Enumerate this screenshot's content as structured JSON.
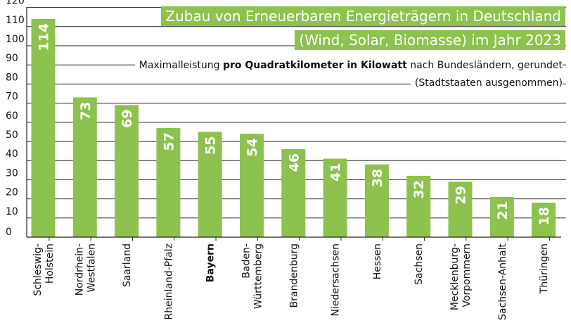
{
  "title_line1": "Zubau von Erneuerbaren Energieträgern in Deutschland",
  "title_line2": "(Wind, Solar, Biomasse) im Jahr 2023",
  "subtitle_pre": "Maximalleistung ",
  "subtitle_bold": "pro Quadratkilometer in Kilowatt",
  "subtitle_post": " nach Bundesländern, gerundet",
  "subtitle_line2": "(Stadtstaaten ausgenommen)",
  "colors": {
    "bar": "#8cc24d",
    "title_bg": "#8cc24d",
    "grid": "#222222",
    "text": "#111111"
  },
  "chart_data": {
    "type": "bar",
    "title": "Zubau von Erneuerbaren Energieträgern in Deutschland (Wind, Solar, Biomasse) im Jahr 2023",
    "ylabel": "Maximalleistung pro Quadratkilometer in Kilowatt",
    "xlabel": "",
    "ylim": [
      0,
      120
    ],
    "yticks": [
      "0",
      "10",
      "20",
      "30",
      "40",
      "50",
      "60",
      "70",
      "80",
      "90",
      "100",
      "110",
      "120"
    ],
    "categories": [
      {
        "lines": [
          "Schleswig-",
          "Holstein"
        ],
        "bold": false
      },
      {
        "lines": [
          "Nordrhein-",
          "Westfalen"
        ],
        "bold": false
      },
      {
        "lines": [
          "Saarland"
        ],
        "bold": false
      },
      {
        "lines": [
          "Rheinland-Pfalz"
        ],
        "bold": false
      },
      {
        "lines": [
          "Bayern"
        ],
        "bold": true
      },
      {
        "lines": [
          "Baden-",
          "Württemberg"
        ],
        "bold": false
      },
      {
        "lines": [
          "Brandenburg"
        ],
        "bold": false
      },
      {
        "lines": [
          "Niedersachsen"
        ],
        "bold": false
      },
      {
        "lines": [
          "Hessen"
        ],
        "bold": false
      },
      {
        "lines": [
          "Sachsen"
        ],
        "bold": false
      },
      {
        "lines": [
          "Mecklenburg-",
          "Vorpommern"
        ],
        "bold": false
      },
      {
        "lines": [
          "Sachsen-Anhalt"
        ],
        "bold": false
      },
      {
        "lines": [
          "Thüringen"
        ],
        "bold": false
      }
    ],
    "values": [
      114,
      73,
      69,
      57,
      55,
      54,
      46,
      41,
      38,
      32,
      29,
      21,
      18
    ],
    "data_labels": [
      "114",
      "73",
      "69",
      "57",
      "55",
      "54",
      "46",
      "41",
      "38",
      "32",
      "29",
      "21",
      "18"
    ]
  }
}
